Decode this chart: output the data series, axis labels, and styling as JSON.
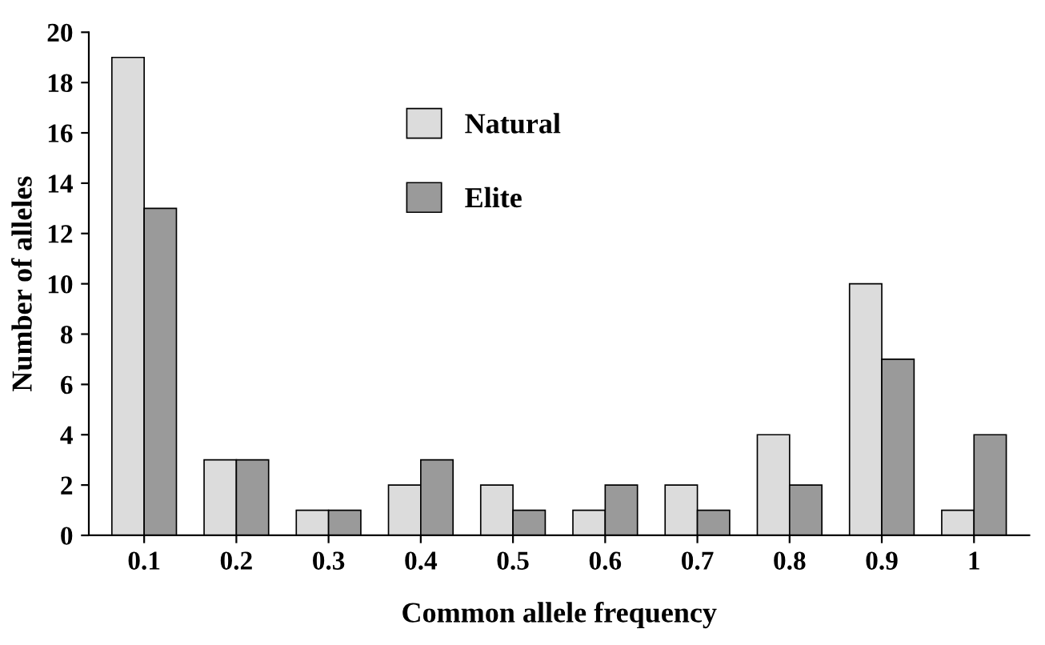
{
  "chart_data": {
    "type": "bar",
    "xlabel": "Common allele frequency",
    "ylabel": "Number of alleles",
    "categories": [
      "0.1",
      "0.2",
      "0.3",
      "0.4",
      "0.5",
      "0.6",
      "0.7",
      "0.8",
      "0.9",
      "1"
    ],
    "series": [
      {
        "name": "Natural",
        "color": "#dcdcdc",
        "values": [
          19,
          3,
          1,
          2,
          2,
          1,
          2,
          4,
          10,
          1
        ]
      },
      {
        "name": "Elite",
        "color": "#9a9a9a",
        "values": [
          13,
          3,
          1,
          3,
          1,
          2,
          1,
          2,
          7,
          4
        ]
      }
    ],
    "ylim": [
      0,
      20
    ],
    "yticks": [
      0,
      2,
      4,
      6,
      8,
      10,
      12,
      14,
      16,
      18,
      20
    ],
    "grid": false,
    "legend": "top"
  }
}
